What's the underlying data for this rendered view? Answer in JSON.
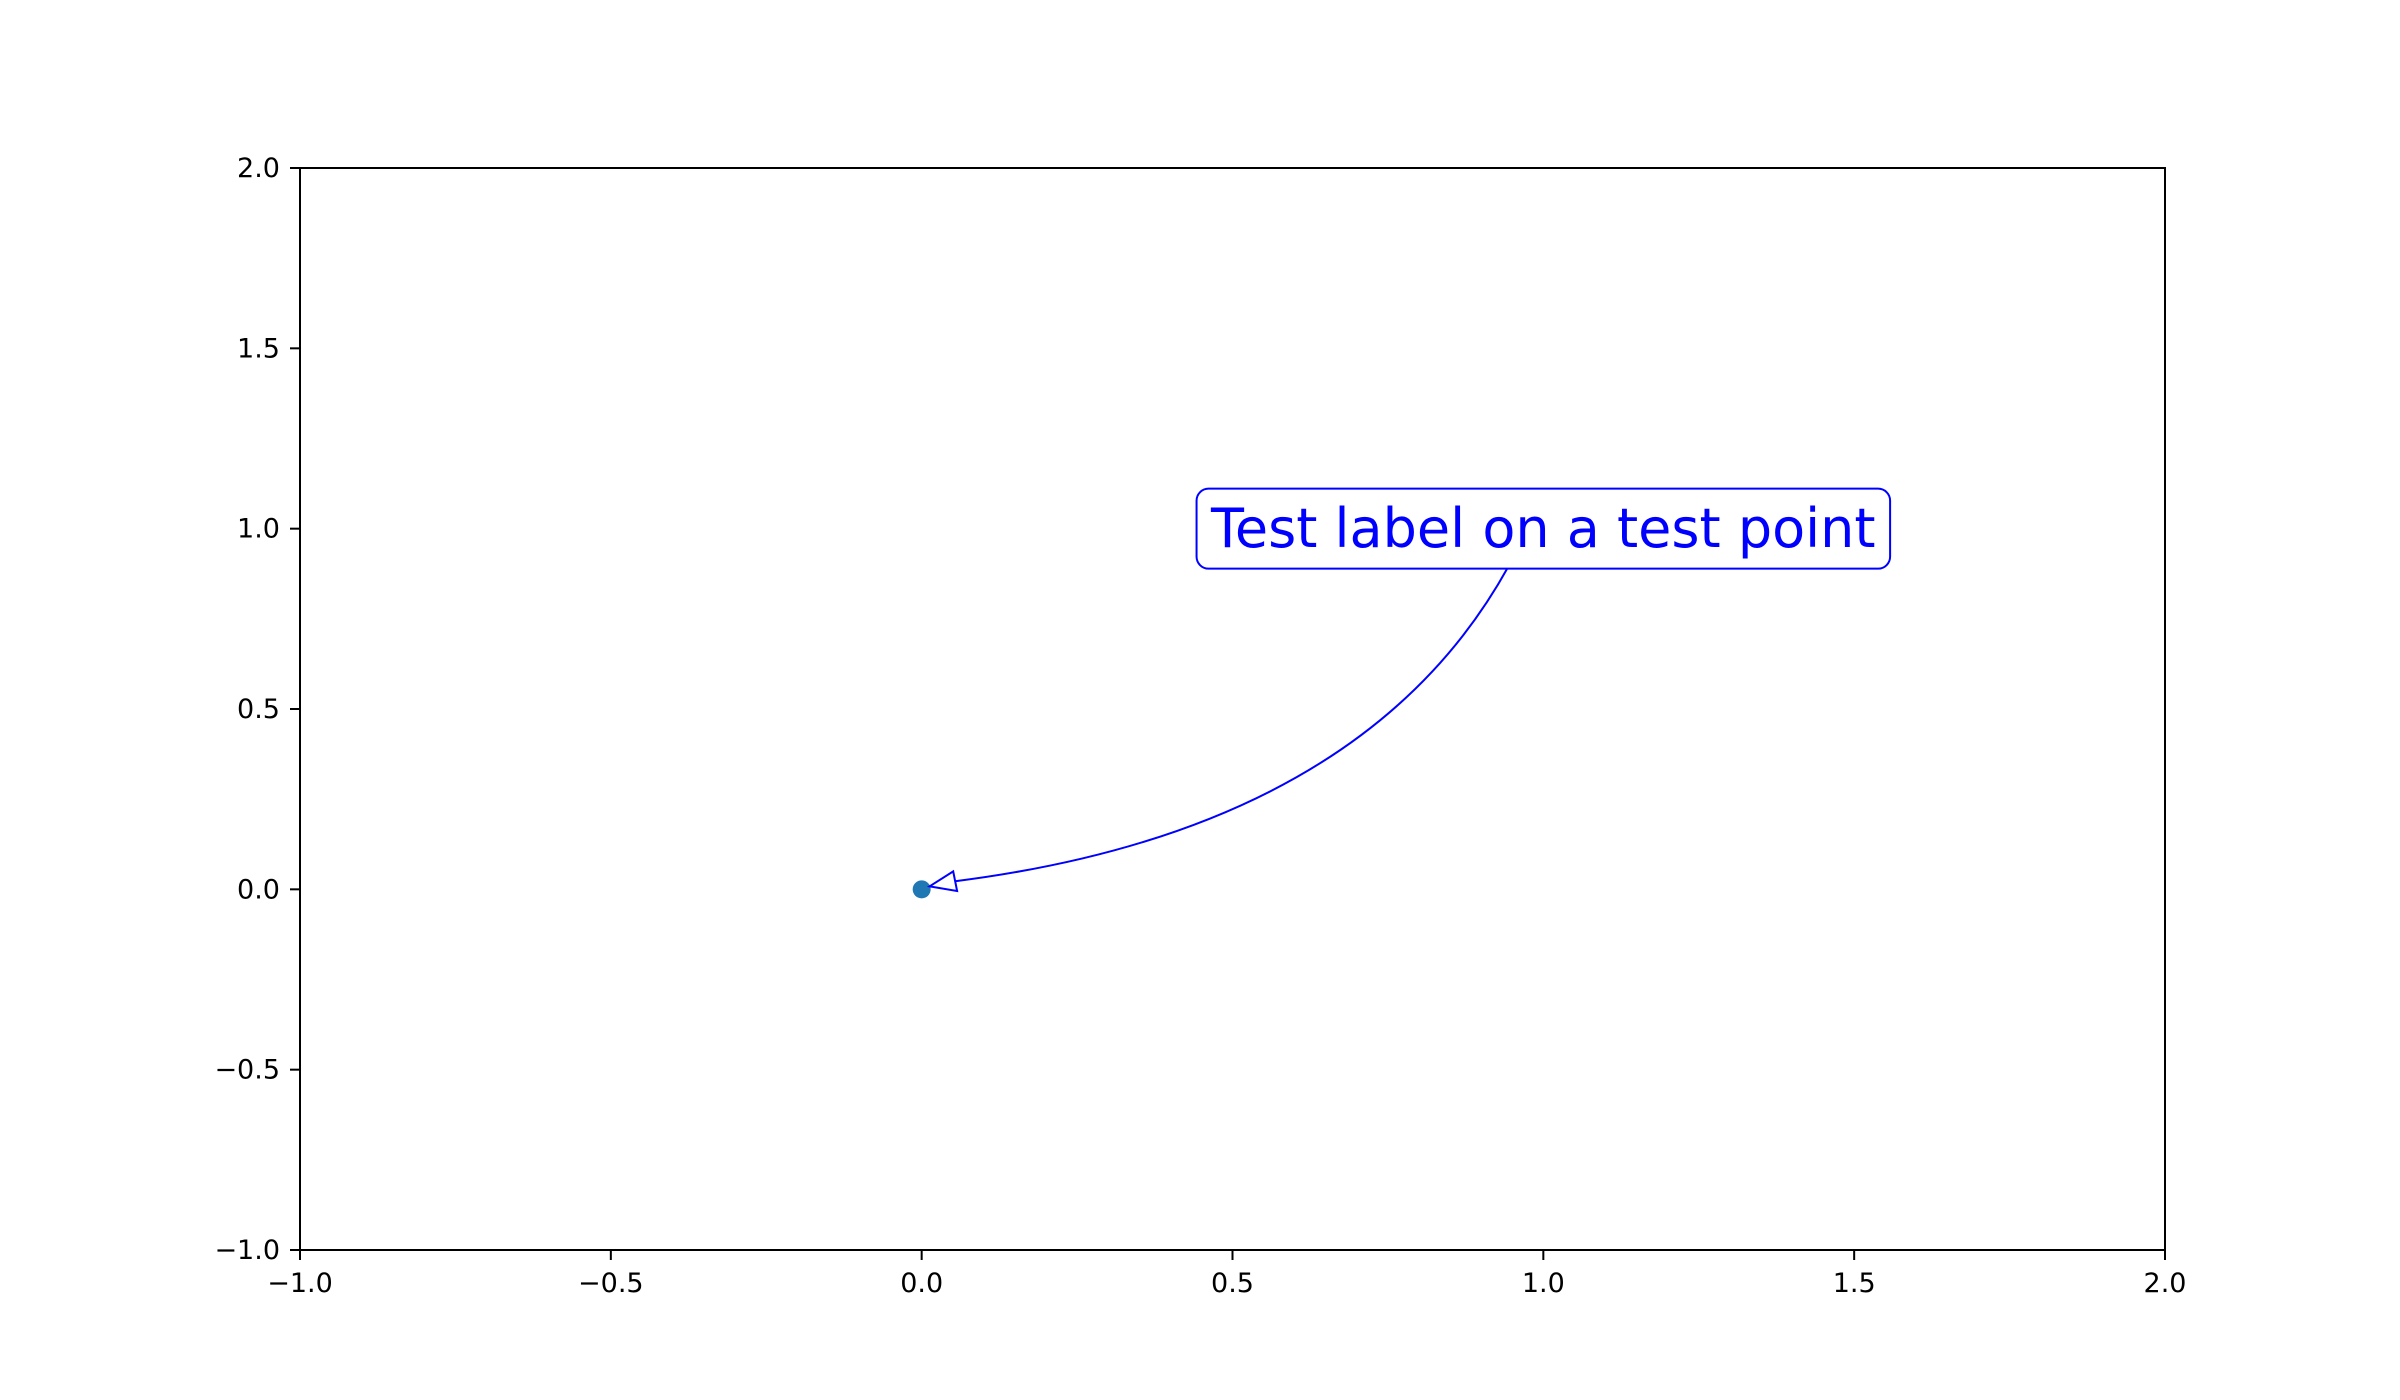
{
  "chart_data": {
    "type": "scatter",
    "title": "",
    "xlabel": "",
    "ylabel": "",
    "xlim": [
      -1.0,
      2.0
    ],
    "ylim": [
      -1.0,
      2.0
    ],
    "grid": false,
    "x_ticks": [
      -1.0,
      -0.5,
      0.0,
      0.5,
      1.0,
      1.5,
      2.0
    ],
    "y_ticks": [
      -1.0,
      -0.5,
      0.0,
      0.5,
      1.0,
      1.5,
      2.0
    ],
    "x_tick_labels": [
      "−1.0",
      "−0.5",
      "0.0",
      "0.5",
      "1.0",
      "1.5",
      "2.0"
    ],
    "y_tick_labels": [
      "−1.0",
      "−0.5",
      "0.0",
      "0.5",
      "1.0",
      "1.5",
      "2.0"
    ],
    "series": [
      {
        "x": [
          0.0
        ],
        "y": [
          0.0
        ],
        "color": "#1f77b4"
      }
    ],
    "annotations": [
      {
        "text": "Test label on a test point",
        "point": [
          0.0,
          0.0
        ],
        "text_position": [
          1.0,
          1.0
        ],
        "color": "#0000ff",
        "style": "rounded box with curved arrow"
      }
    ]
  }
}
